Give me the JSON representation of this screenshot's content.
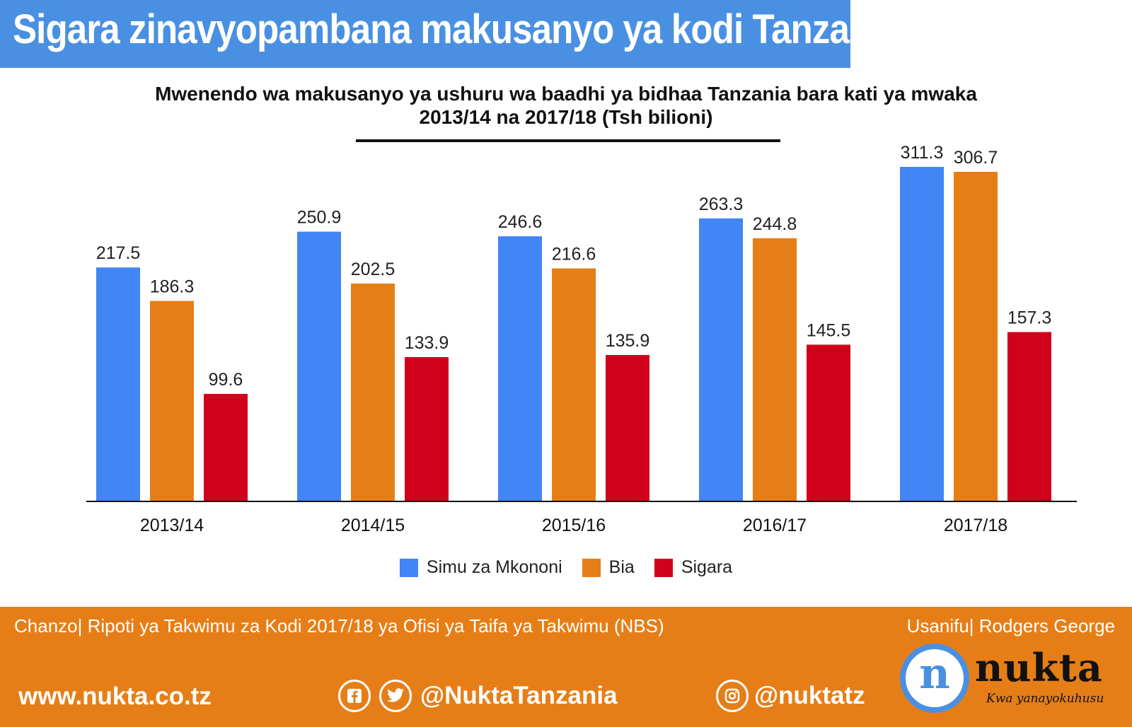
{
  "header": {
    "title": "Sigara zinavyopambana makusanyo ya kodi Tanzania"
  },
  "chart_data": {
    "type": "bar",
    "title_line1": "Mwenendo wa makusanyo ya  ushuru wa baadhi ya bidhaa Tanzania bara kati ya mwaka",
    "title_line2": "2013/14 na 2017/18  (Tsh bilioni)",
    "categories": [
      "2013/14",
      "2014/15",
      "2015/16",
      "2016/17",
      "2017/18"
    ],
    "series": [
      {
        "name": "Simu za Mkononi",
        "color": "#4285f4",
        "values": [
          217.5,
          250.9,
          246.6,
          263.3,
          311.3
        ]
      },
      {
        "name": "Bia",
        "color": "#e67e17",
        "values": [
          186.3,
          202.5,
          216.6,
          244.8,
          306.7
        ]
      },
      {
        "name": "Sigara",
        "color": "#d0021b",
        "values": [
          99.6,
          133.9,
          135.9,
          145.5,
          157.3
        ]
      }
    ],
    "ylim": [
      0,
      320
    ],
    "grid": false,
    "legend": "bottom-center"
  },
  "footer": {
    "source": "Chanzo| Ripoti ya Takwimu za Kodi 2017/18 ya Ofisi ya Taifa ya Takwimu (NBS)",
    "credit": "Usanifu| Rodgers George",
    "website": "www.nukta.co.tz",
    "social_handle": "@NuktaTanzania",
    "instagram_handle": "@nuktatz",
    "logo_letter": "n",
    "logo_word": "nukta",
    "logo_tagline": "Kwa yanayokuhusu"
  }
}
